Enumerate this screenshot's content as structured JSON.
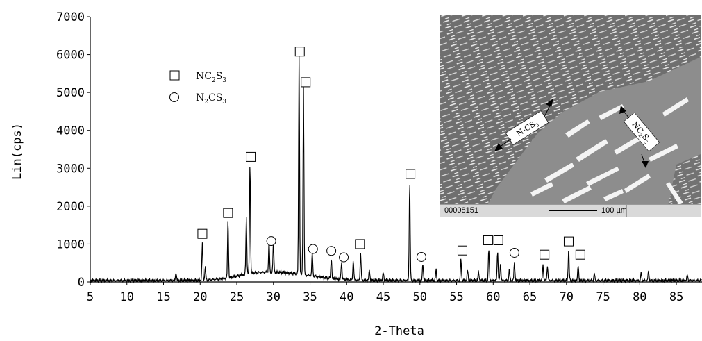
{
  "chart_data": {
    "type": "line",
    "xlabel": "2-Theta",
    "ylabel": "Lin(cps)",
    "xlim": [
      5,
      88.5
    ],
    "ylim": [
      0,
      7000
    ],
    "x_ticks": [
      5,
      10,
      15,
      20,
      25,
      30,
      35,
      40,
      45,
      50,
      55,
      60,
      65,
      70,
      75,
      80,
      85
    ],
    "y_ticks": [
      0,
      1000,
      2000,
      3000,
      4000,
      5000,
      6000,
      7000
    ],
    "grid": false,
    "legend": {
      "placement": "top-left",
      "entries": [
        {
          "marker": "square",
          "label": "NC",
          "sub1": "2",
          "mid": "S",
          "sub2": "3"
        },
        {
          "marker": "circle",
          "label": "N",
          "sub1": "2",
          "mid": "CS",
          "sub2": "3"
        }
      ]
    },
    "peaks": [
      {
        "x": 16.7,
        "y": 220
      },
      {
        "x": 20.3,
        "y": 1000
      },
      {
        "x": 20.7,
        "y": 350
      },
      {
        "x": 23.8,
        "y": 1560
      },
      {
        "x": 26.3,
        "y": 1500
      },
      {
        "x": 26.8,
        "y": 2950
      },
      {
        "x": 29.4,
        "y": 850
      },
      {
        "x": 30.0,
        "y": 800
      },
      {
        "x": 33.5,
        "y": 5870
      },
      {
        "x": 34.1,
        "y": 4980
      },
      {
        "x": 35.3,
        "y": 620
      },
      {
        "x": 37.9,
        "y": 560
      },
      {
        "x": 39.3,
        "y": 470
      },
      {
        "x": 40.9,
        "y": 520
      },
      {
        "x": 41.9,
        "y": 720
      },
      {
        "x": 43.1,
        "y": 280
      },
      {
        "x": 45.0,
        "y": 220
      },
      {
        "x": 48.6,
        "y": 2640
      },
      {
        "x": 50.4,
        "y": 450
      },
      {
        "x": 52.2,
        "y": 280
      },
      {
        "x": 55.6,
        "y": 560
      },
      {
        "x": 56.5,
        "y": 280
      },
      {
        "x": 58.0,
        "y": 230
      },
      {
        "x": 59.4,
        "y": 840
      },
      {
        "x": 60.6,
        "y": 800
      },
      {
        "x": 61.0,
        "y": 450
      },
      {
        "x": 62.2,
        "y": 280
      },
      {
        "x": 62.9,
        "y": 480
      },
      {
        "x": 66.8,
        "y": 420
      },
      {
        "x": 67.4,
        "y": 390
      },
      {
        "x": 70.3,
        "y": 830
      },
      {
        "x": 71.6,
        "y": 420
      },
      {
        "x": 73.8,
        "y": 180
      },
      {
        "x": 80.2,
        "y": 200
      },
      {
        "x": 81.2,
        "y": 250
      },
      {
        "x": 86.5,
        "y": 150
      }
    ],
    "annotations": [
      {
        "marker": "square",
        "x": 20.3,
        "y": 1270
      },
      {
        "marker": "square",
        "x": 23.8,
        "y": 1820
      },
      {
        "marker": "square",
        "x": 26.9,
        "y": 3300
      },
      {
        "marker": "circle",
        "x": 29.7,
        "y": 1080
      },
      {
        "marker": "square",
        "x": 33.6,
        "y": 6080
      },
      {
        "marker": "square",
        "x": 34.4,
        "y": 5270
      },
      {
        "marker": "circle",
        "x": 35.4,
        "y": 870
      },
      {
        "marker": "circle",
        "x": 37.9,
        "y": 820
      },
      {
        "marker": "circle",
        "x": 39.6,
        "y": 650
      },
      {
        "marker": "square",
        "x": 41.8,
        "y": 1000
      },
      {
        "marker": "square",
        "x": 48.7,
        "y": 2850
      },
      {
        "marker": "circle",
        "x": 50.2,
        "y": 660
      },
      {
        "marker": "square",
        "x": 55.8,
        "y": 830
      },
      {
        "marker": "square",
        "x": 59.3,
        "y": 1100
      },
      {
        "marker": "square",
        "x": 60.7,
        "y": 1100
      },
      {
        "marker": "circle",
        "x": 62.9,
        "y": 770
      },
      {
        "marker": "square",
        "x": 67.0,
        "y": 720
      },
      {
        "marker": "square",
        "x": 70.3,
        "y": 1070
      },
      {
        "marker": "square",
        "x": 71.9,
        "y": 720
      }
    ]
  },
  "inset": {
    "labels": [
      {
        "label": "N",
        "sub1": "",
        "mid": "-CS",
        "sub2": "3"
      },
      {
        "label": "NC",
        "sub1": "2",
        "mid": "S",
        "sub2": "3"
      }
    ],
    "image_code": "00008151",
    "scale_bar": "100 µm"
  }
}
